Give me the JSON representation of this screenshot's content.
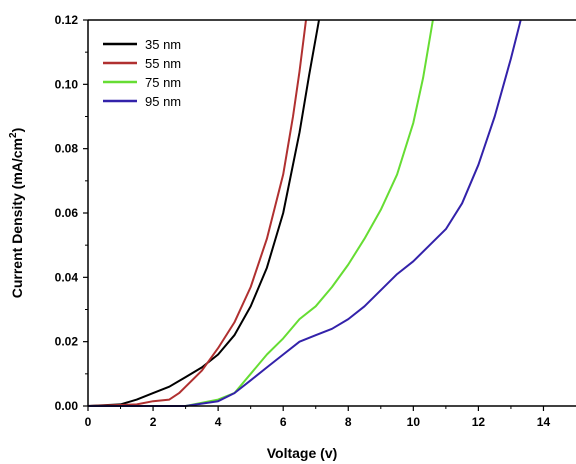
{
  "chart_data": {
    "type": "line",
    "xlabel": "Voltage (v)",
    "ylabel_main": "Current Density (mA/cm",
    "ylabel_sup": "2",
    "ylabel_close": ")",
    "xlim": [
      0,
      15
    ],
    "ylim": [
      0,
      0.12
    ],
    "x_ticks": [
      0,
      2,
      4,
      6,
      8,
      10,
      12,
      14
    ],
    "x_tick_labels": [
      "0",
      "2",
      "4",
      "6",
      "8",
      "10",
      "12",
      "14"
    ],
    "y_ticks": [
      0,
      0.02,
      0.04,
      0.06,
      0.08,
      0.1,
      0.12
    ],
    "y_tick_labels": [
      "0.00",
      "0.02",
      "0.04",
      "0.06",
      "0.08",
      "0.10",
      "0.12"
    ],
    "grid": false,
    "legend_position": "top-left",
    "series": [
      {
        "name": "35 nm",
        "color": "#000000",
        "x": [
          0,
          1,
          1.5,
          2,
          2.5,
          3,
          3.5,
          4,
          4.5,
          5,
          5.5,
          6,
          6.5,
          6.8,
          7.1
        ],
        "y": [
          0,
          0.0005,
          0.002,
          0.004,
          0.006,
          0.009,
          0.012,
          0.016,
          0.022,
          0.031,
          0.043,
          0.06,
          0.085,
          0.103,
          0.12
        ]
      },
      {
        "name": "55 nm",
        "color": "#b03030",
        "x": [
          0,
          1.5,
          2,
          2.5,
          2.8,
          3,
          3.5,
          4,
          4.5,
          5,
          5.5,
          6,
          6.3,
          6.5,
          6.7
        ],
        "y": [
          0,
          0.0005,
          0.0015,
          0.002,
          0.004,
          0.006,
          0.011,
          0.018,
          0.026,
          0.037,
          0.052,
          0.072,
          0.09,
          0.104,
          0.12
        ]
      },
      {
        "name": "75 nm",
        "color": "#66dd33",
        "x": [
          0,
          3,
          4,
          4.5,
          5,
          5.5,
          6,
          6.5,
          7,
          7.5,
          8,
          8.5,
          9,
          9.5,
          10,
          10.3,
          10.6
        ],
        "y": [
          0,
          0,
          0.002,
          0.004,
          0.01,
          0.016,
          0.021,
          0.027,
          0.031,
          0.037,
          0.044,
          0.052,
          0.061,
          0.072,
          0.088,
          0.102,
          0.12
        ]
      },
      {
        "name": "95 nm",
        "color": "#3322aa",
        "x": [
          0,
          3,
          4,
          4.5,
          5,
          5.5,
          6,
          6.5,
          7,
          7.5,
          8,
          8.5,
          9,
          9.5,
          10,
          10.5,
          11,
          11.5,
          12,
          12.5,
          13,
          13.3
        ],
        "y": [
          0,
          0,
          0.0015,
          0.004,
          0.008,
          0.012,
          0.016,
          0.02,
          0.022,
          0.024,
          0.027,
          0.031,
          0.036,
          0.041,
          0.045,
          0.05,
          0.055,
          0.063,
          0.075,
          0.09,
          0.108,
          0.12
        ]
      }
    ]
  }
}
